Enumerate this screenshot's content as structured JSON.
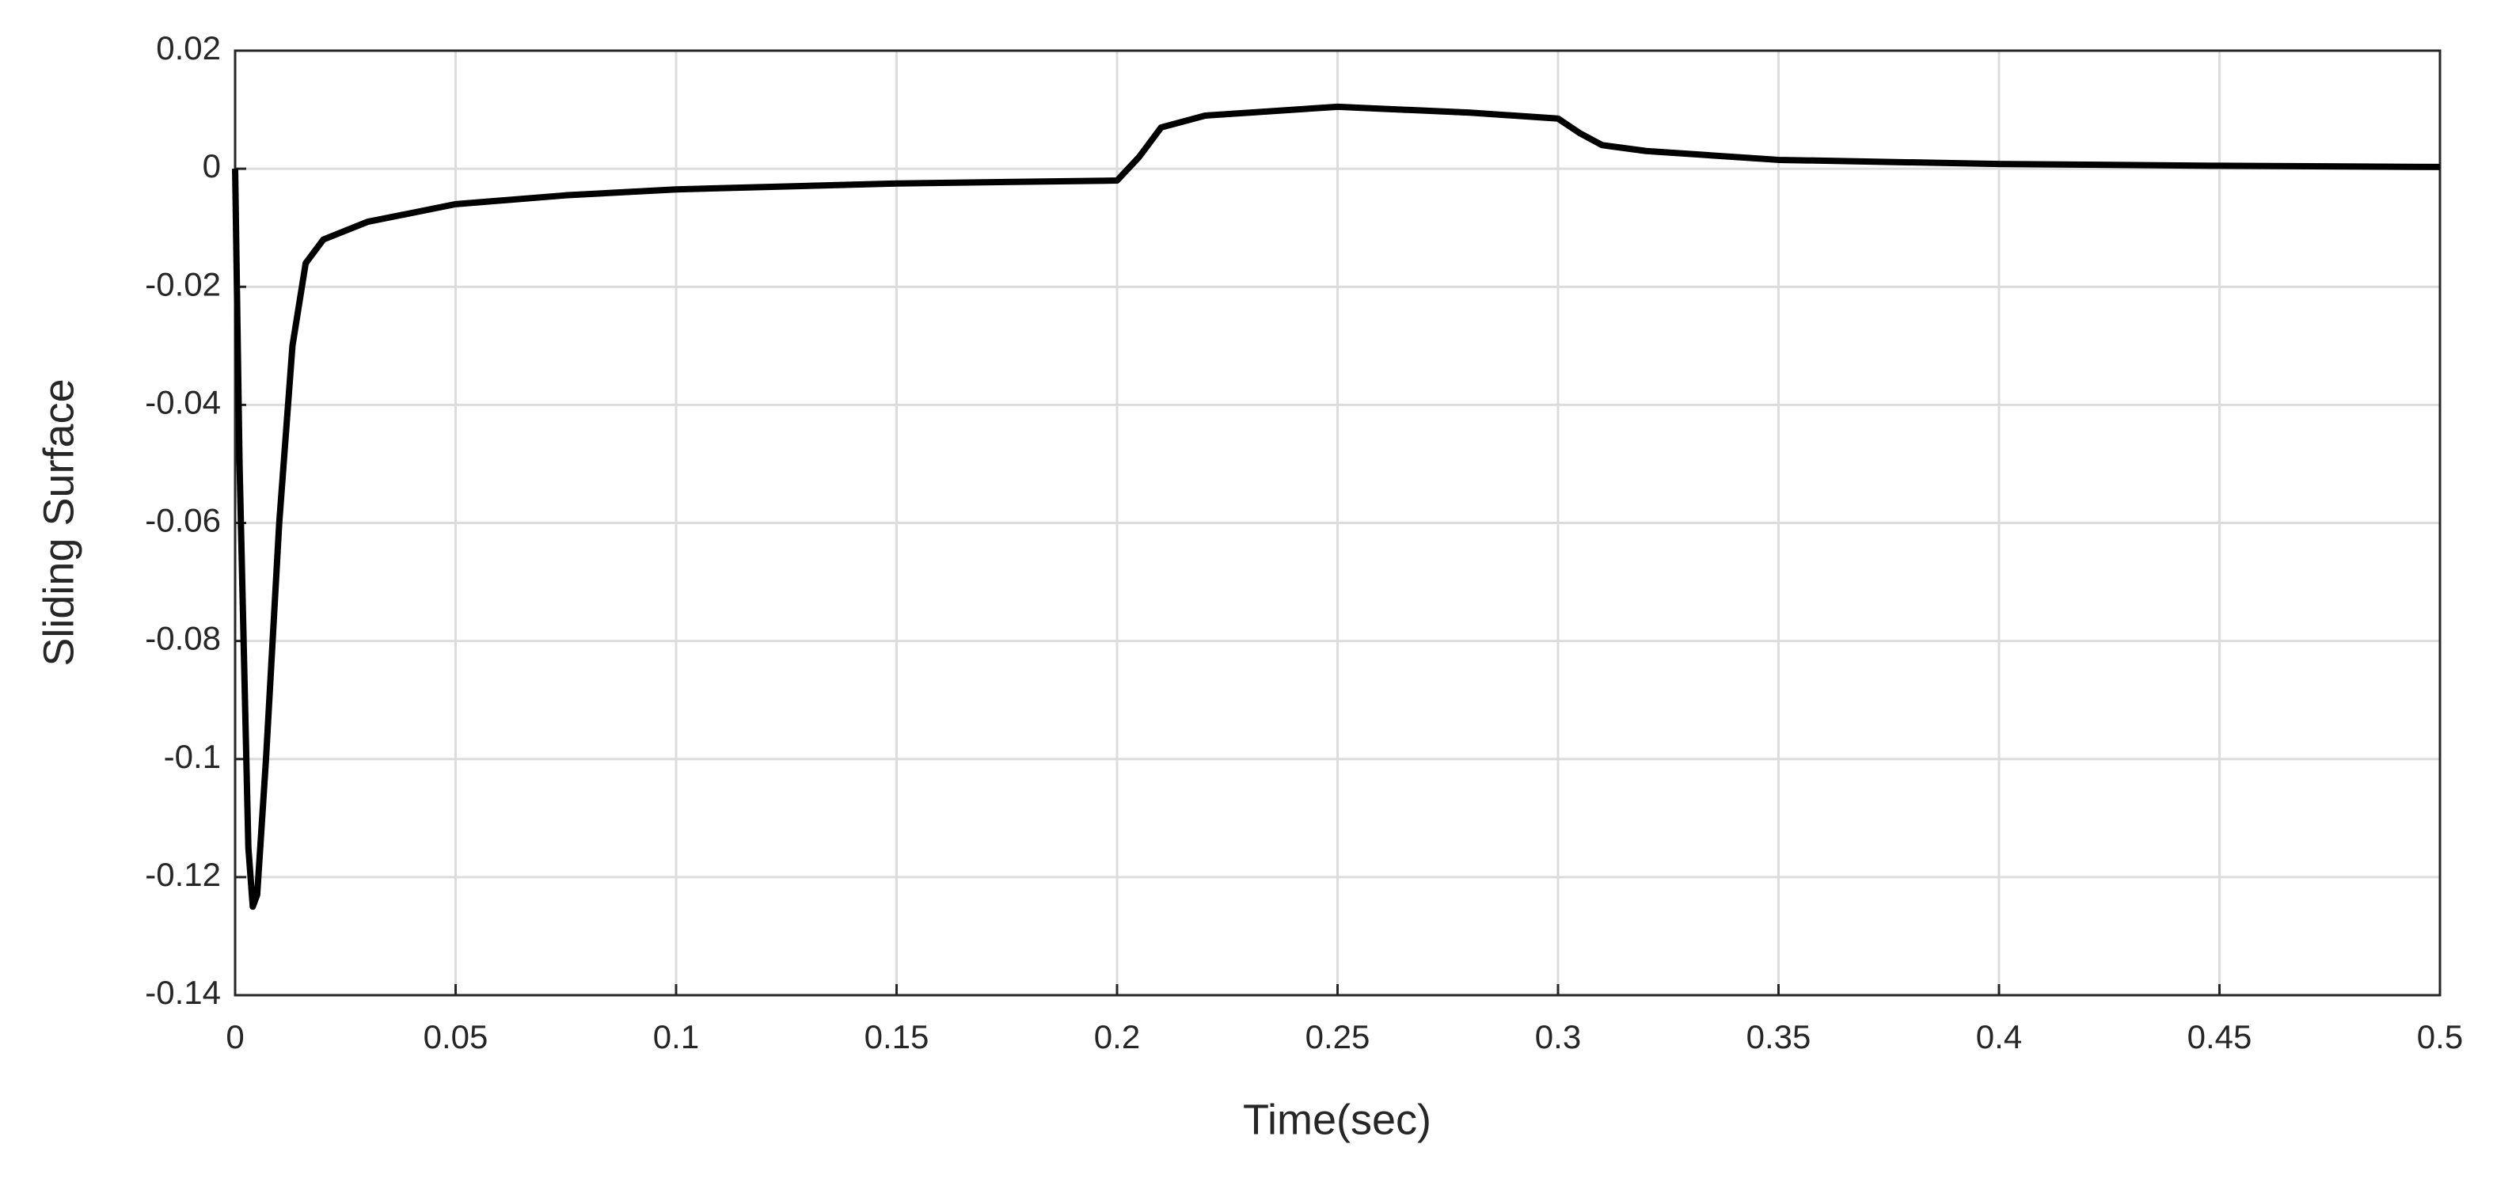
{
  "chart_data": {
    "type": "line",
    "xlabel": "Time(sec)",
    "ylabel": "Sliding Surface",
    "x": [
      0,
      0.001,
      0.003,
      0.004,
      0.005,
      0.007,
      0.01,
      0.013,
      0.016,
      0.02,
      0.03,
      0.05,
      0.075,
      0.1,
      0.15,
      0.2,
      0.205,
      0.21,
      0.22,
      0.25,
      0.28,
      0.3,
      0.305,
      0.31,
      0.32,
      0.35,
      0.4,
      0.45,
      0.5
    ],
    "series": [
      {
        "name": "Sliding Surface",
        "color": "#000000",
        "values": [
          0,
          -0.05,
          -0.115,
          -0.125,
          -0.123,
          -0.1,
          -0.06,
          -0.03,
          -0.016,
          -0.012,
          -0.009,
          -0.006,
          -0.0045,
          -0.0035,
          -0.0025,
          -0.002,
          0.002,
          0.007,
          0.009,
          0.0105,
          0.0095,
          0.0085,
          0.006,
          0.004,
          0.003,
          0.0015,
          0.0008,
          0.0005,
          0.0003
        ]
      }
    ],
    "xlim": [
      0,
      0.5
    ],
    "xticks": [
      0,
      0.05,
      0.1,
      0.15,
      0.2,
      0.25,
      0.3,
      0.35,
      0.4,
      0.45,
      0.5
    ],
    "ylim": [
      -0.14,
      0.02
    ],
    "yticks": [
      0.02,
      0,
      -0.02,
      -0.04,
      -0.06,
      -0.08,
      -0.1,
      -0.12,
      -0.14
    ],
    "grid": true
  }
}
